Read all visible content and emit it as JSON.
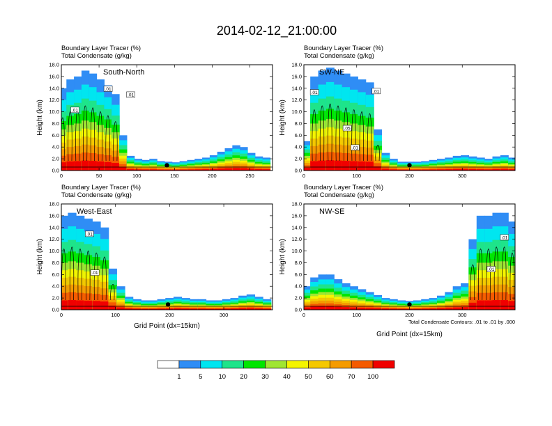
{
  "title": "2014-02-12_21:00:00",
  "chart_data": [
    {
      "type": "heatmap",
      "panel_label": "South-North",
      "header_line1": "Boundary Layer Tracer   (%)",
      "header_line2": "Total Condensate   (g/kg)",
      "ylabel": "Height (km)",
      "xlabel": "",
      "xlim": [
        0,
        280
      ],
      "xticks": [
        0,
        50,
        100,
        150,
        200,
        250
      ],
      "ylim": [
        0,
        18
      ],
      "yticks": [
        "0.0",
        "2.0",
        "4.0",
        "6.0",
        "8.0",
        "10.0",
        "12.0",
        "14.0",
        "16.0",
        "18.0"
      ],
      "marker_x": 140,
      "contour_labels": [
        {
          "text": ".01",
          "x": 62,
          "y": 13.8
        },
        {
          "text": ".01",
          "x": 92,
          "y": 12.8
        },
        {
          "text": ".01",
          "x": 18,
          "y": 10.2
        }
      ],
      "columns": [
        {
          "x": 2,
          "h": 14
        },
        {
          "x": 12,
          "h": 15.5
        },
        {
          "x": 22,
          "h": 16
        },
        {
          "x": 32,
          "h": 17
        },
        {
          "x": 42,
          "h": 16.5
        },
        {
          "x": 52,
          "h": 15.5
        },
        {
          "x": 62,
          "h": 14.5
        },
        {
          "x": 72,
          "h": 13
        },
        {
          "x": 82,
          "h": 6
        },
        {
          "x": 92,
          "h": 2.5
        },
        {
          "x": 102,
          "h": 2
        },
        {
          "x": 112,
          "h": 1.8
        },
        {
          "x": 122,
          "h": 2
        },
        {
          "x": 132,
          "h": 1.6
        },
        {
          "x": 142,
          "h": 1.5
        },
        {
          "x": 152,
          "h": 1.4
        },
        {
          "x": 162,
          "h": 1.6
        },
        {
          "x": 172,
          "h": 1.8
        },
        {
          "x": 182,
          "h": 2
        },
        {
          "x": 192,
          "h": 2.2
        },
        {
          "x": 202,
          "h": 2.6
        },
        {
          "x": 212,
          "h": 3.2
        },
        {
          "x": 222,
          "h": 3.8
        },
        {
          "x": 232,
          "h": 4.3
        },
        {
          "x": 242,
          "h": 4
        },
        {
          "x": 252,
          "h": 3
        },
        {
          "x": 262,
          "h": 2.4
        },
        {
          "x": 272,
          "h": 2.2
        }
      ]
    },
    {
      "type": "heatmap",
      "panel_label": "SW-NE",
      "header_line1": "Boundary Layer Tracer   (%)",
      "header_line2": "Total Condensate   (g/kg)",
      "ylabel": "Height (km)",
      "xlabel": "",
      "xlim": [
        0,
        400
      ],
      "xticks": [
        0,
        100,
        200,
        300
      ],
      "ylim": [
        0,
        18
      ],
      "yticks": [
        "0.0",
        "2.0",
        "4.0",
        "6.0",
        "8.0",
        "10.0",
        "12.0",
        "14.0",
        "16.0",
        "18.0"
      ],
      "marker_x": 200,
      "contour_labels": [
        {
          "text": ".01",
          "x": 20,
          "y": 13.2
        },
        {
          "text": ".01",
          "x": 137,
          "y": 13.4
        },
        {
          "text": ".05",
          "x": 82,
          "y": 7.1
        },
        {
          "text": ".01",
          "x": 97,
          "y": 3.8
        }
      ],
      "columns": [
        {
          "x": 5,
          "h": 5
        },
        {
          "x": 20,
          "h": 16
        },
        {
          "x": 35,
          "h": 17
        },
        {
          "x": 50,
          "h": 17.5
        },
        {
          "x": 65,
          "h": 17
        },
        {
          "x": 80,
          "h": 16.5
        },
        {
          "x": 95,
          "h": 16
        },
        {
          "x": 110,
          "h": 15.5
        },
        {
          "x": 125,
          "h": 15
        },
        {
          "x": 140,
          "h": 7
        },
        {
          "x": 155,
          "h": 3
        },
        {
          "x": 170,
          "h": 2
        },
        {
          "x": 185,
          "h": 1.5
        },
        {
          "x": 200,
          "h": 1.5
        },
        {
          "x": 215,
          "h": 1.5
        },
        {
          "x": 230,
          "h": 1.6
        },
        {
          "x": 245,
          "h": 1.8
        },
        {
          "x": 260,
          "h": 2
        },
        {
          "x": 275,
          "h": 2.2
        },
        {
          "x": 290,
          "h": 2.5
        },
        {
          "x": 305,
          "h": 2.6
        },
        {
          "x": 320,
          "h": 2.4
        },
        {
          "x": 335,
          "h": 2.2
        },
        {
          "x": 350,
          "h": 2
        },
        {
          "x": 365,
          "h": 2.4
        },
        {
          "x": 380,
          "h": 2.6
        },
        {
          "x": 395,
          "h": 2.2
        }
      ]
    },
    {
      "type": "heatmap",
      "panel_label": "West-East",
      "header_line1": "Boundary Layer Tracer   (%)",
      "header_line2": "Total Condensate   (g/kg)",
      "ylabel": "Height (km)",
      "xlabel": "Grid Point (dx=15km)",
      "xlim": [
        0,
        390
      ],
      "xticks": [
        0,
        100,
        200,
        300
      ],
      "ylim": [
        0,
        18
      ],
      "yticks": [
        "0.0",
        "2.0",
        "4.0",
        "6.0",
        "8.0",
        "10.0",
        "12.0",
        "14.0",
        "16.0",
        "18.0"
      ],
      "marker_x": 197,
      "contour_labels": [
        {
          "text": ".01",
          "x": 52,
          "y": 12.8
        },
        {
          "text": ".01",
          "x": 62,
          "y": 6.2
        }
      ],
      "columns": [
        {
          "x": 5,
          "h": 16
        },
        {
          "x": 20,
          "h": 16.5
        },
        {
          "x": 35,
          "h": 16
        },
        {
          "x": 50,
          "h": 15.5
        },
        {
          "x": 65,
          "h": 15
        },
        {
          "x": 80,
          "h": 14
        },
        {
          "x": 95,
          "h": 7
        },
        {
          "x": 110,
          "h": 4
        },
        {
          "x": 125,
          "h": 2.2
        },
        {
          "x": 140,
          "h": 1.8
        },
        {
          "x": 155,
          "h": 1.6
        },
        {
          "x": 170,
          "h": 1.6
        },
        {
          "x": 185,
          "h": 1.8
        },
        {
          "x": 200,
          "h": 2
        },
        {
          "x": 215,
          "h": 2.2
        },
        {
          "x": 230,
          "h": 2
        },
        {
          "x": 245,
          "h": 1.8
        },
        {
          "x": 260,
          "h": 1.8
        },
        {
          "x": 275,
          "h": 1.6
        },
        {
          "x": 290,
          "h": 1.6
        },
        {
          "x": 305,
          "h": 1.8
        },
        {
          "x": 320,
          "h": 2
        },
        {
          "x": 335,
          "h": 2.4
        },
        {
          "x": 350,
          "h": 2.6
        },
        {
          "x": 365,
          "h": 2.2
        },
        {
          "x": 380,
          "h": 1.8
        }
      ]
    },
    {
      "type": "heatmap",
      "panel_label": "NW-SE",
      "header_line1": "Boundary Layer Tracer   (%)",
      "header_line2": "Total Condensate   (g/kg)",
      "ylabel": "Height (km)",
      "xlabel": "Grid Point (dx=15km)",
      "xlim": [
        0,
        400
      ],
      "xticks": [
        0,
        100,
        200,
        300
      ],
      "ylim": [
        0,
        18
      ],
      "yticks": [
        "0.0",
        "2.0",
        "4.0",
        "6.0",
        "8.0",
        "10.0",
        "12.0",
        "14.0",
        "16.0",
        "18.0"
      ],
      "marker_x": 200,
      "note": "Total Condensate Contours: .01 to .01 by .000",
      "contour_labels": [
        {
          "text": ".01",
          "x": 380,
          "y": 12.2
        },
        {
          "text": ".01",
          "x": 355,
          "y": 6.8
        }
      ],
      "columns": [
        {
          "x": 5,
          "h": 4
        },
        {
          "x": 20,
          "h": 5.5
        },
        {
          "x": 35,
          "h": 6
        },
        {
          "x": 50,
          "h": 6
        },
        {
          "x": 65,
          "h": 5.2
        },
        {
          "x": 80,
          "h": 4.5
        },
        {
          "x": 95,
          "h": 4
        },
        {
          "x": 110,
          "h": 3.5
        },
        {
          "x": 125,
          "h": 3
        },
        {
          "x": 140,
          "h": 2.5
        },
        {
          "x": 155,
          "h": 2
        },
        {
          "x": 170,
          "h": 1.8
        },
        {
          "x": 185,
          "h": 1.6
        },
        {
          "x": 200,
          "h": 1.5
        },
        {
          "x": 215,
          "h": 1.6
        },
        {
          "x": 230,
          "h": 1.8
        },
        {
          "x": 245,
          "h": 2
        },
        {
          "x": 260,
          "h": 2.4
        },
        {
          "x": 275,
          "h": 3
        },
        {
          "x": 290,
          "h": 4
        },
        {
          "x": 305,
          "h": 4.5
        },
        {
          "x": 320,
          "h": 12
        },
        {
          "x": 335,
          "h": 16
        },
        {
          "x": 350,
          "h": 16
        },
        {
          "x": 365,
          "h": 16.5
        },
        {
          "x": 380,
          "h": 16.5
        },
        {
          "x": 395,
          "h": 15
        }
      ]
    }
  ],
  "colorbar": {
    "labels": [
      "1",
      "5",
      "10",
      "20",
      "30",
      "40",
      "50",
      "60",
      "70",
      "100"
    ],
    "colors": [
      "#ffffff",
      "#2f8df5",
      "#00e6f0",
      "#1ee48a",
      "#00e600",
      "#a0e632",
      "#f5f500",
      "#f5c800",
      "#f59b00",
      "#f55a00",
      "#f00000"
    ]
  }
}
